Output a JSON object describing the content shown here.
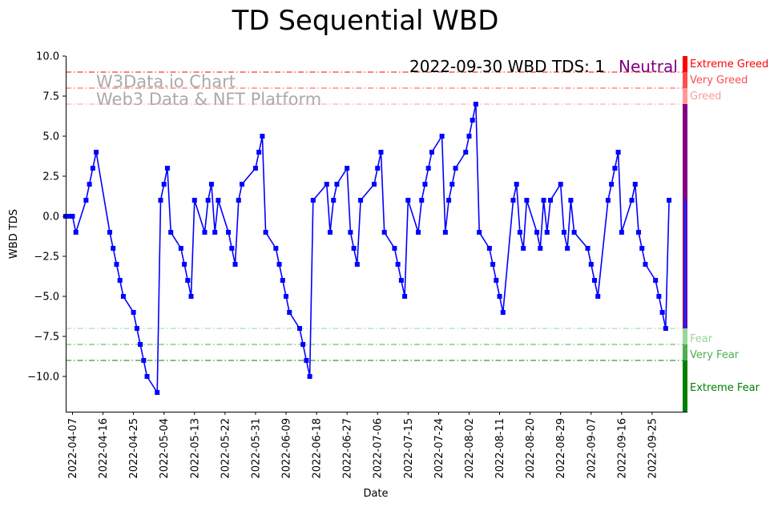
{
  "chart_data": {
    "type": "line",
    "title": "TD Sequential WBD",
    "xlabel": "Date",
    "ylabel": "WBD TDS",
    "ylim": [
      -12.2,
      10
    ],
    "xlim": [
      "2022-04-05",
      "2022-10-04"
    ],
    "y_ticks": [
      10,
      7.5,
      5,
      2.5,
      0,
      -2.5,
      -5,
      -7.5,
      -10
    ],
    "y_tick_labels": [
      "10.0",
      "7.5",
      "5.0",
      "2.5",
      "0.0",
      "−2.5",
      "−5.0",
      "−7.5",
      "−10.0"
    ],
    "x_ticks": [
      "2022-04-07",
      "2022-04-16",
      "2022-04-25",
      "2022-05-04",
      "2022-05-13",
      "2022-05-22",
      "2022-05-31",
      "2022-06-09",
      "2022-06-18",
      "2022-06-27",
      "2022-07-06",
      "2022-07-15",
      "2022-07-24",
      "2022-08-02",
      "2022-08-11",
      "2022-08-20",
      "2022-08-29",
      "2022-09-07",
      "2022-09-16",
      "2022-09-25"
    ],
    "grid": false,
    "annotation": {
      "text": "2022-09-30 WBD TDS: 1",
      "status": "Neutral",
      "status_color": "#800080"
    },
    "watermark": [
      "W3Data.io Chart",
      "Web3 Data & NFT Platform"
    ],
    "levels": [
      {
        "label": "Extreme Greed",
        "value": 9,
        "color": "#ff0000"
      },
      {
        "label": "Very Greed",
        "value": 8,
        "color": "#ff4d4d"
      },
      {
        "label": "Greed",
        "value": 7,
        "color": "#ff9999"
      },
      {
        "label": "Fear",
        "value": -7,
        "color": "#99d699"
      },
      {
        "label": "Very Fear",
        "value": -8,
        "color": "#4caf50"
      },
      {
        "label": "Extreme Fear",
        "value": -9,
        "color": "#008000"
      }
    ],
    "sidebar": [
      {
        "from": 9,
        "to": 10,
        "color": "#ff0000"
      },
      {
        "from": 8,
        "to": 9,
        "color": "#ff4d4d"
      },
      {
        "from": 7,
        "to": 8,
        "color": "#ff9999"
      },
      {
        "from": -7,
        "to": 7,
        "color": "#800080"
      },
      {
        "from": -8,
        "to": -7,
        "color": "#99d699"
      },
      {
        "from": -9,
        "to": -8,
        "color": "#4caf50"
      },
      {
        "from": -12.2,
        "to": -9,
        "color": "#008000"
      }
    ],
    "sidebar_marker": 1,
    "series": [
      {
        "color": "#0000ff",
        "x": [
          "2022-04-05",
          "2022-04-06",
          "2022-04-07",
          "2022-04-08",
          "2022-04-11",
          "2022-04-12",
          "2022-04-13",
          "2022-04-14",
          "2022-04-18",
          "2022-04-19",
          "2022-04-20",
          "2022-04-21",
          "2022-04-22",
          "2022-04-25",
          "2022-04-26",
          "2022-04-27",
          "2022-04-28",
          "2022-04-29",
          "2022-05-02",
          "2022-05-03",
          "2022-05-04",
          "2022-05-05",
          "2022-05-06",
          "2022-05-09",
          "2022-05-10",
          "2022-05-11",
          "2022-05-12",
          "2022-05-13",
          "2022-05-16",
          "2022-05-17",
          "2022-05-18",
          "2022-05-19",
          "2022-05-20",
          "2022-05-23",
          "2022-05-24",
          "2022-05-25",
          "2022-05-26",
          "2022-05-27",
          "2022-05-31",
          "2022-06-01",
          "2022-06-02",
          "2022-06-03",
          "2022-06-06",
          "2022-06-07",
          "2022-06-08",
          "2022-06-09",
          "2022-06-10",
          "2022-06-13",
          "2022-06-14",
          "2022-06-15",
          "2022-06-16",
          "2022-06-17",
          "2022-06-21",
          "2022-06-22",
          "2022-06-23",
          "2022-06-24",
          "2022-06-27",
          "2022-06-28",
          "2022-06-29",
          "2022-06-30",
          "2022-07-01",
          "2022-07-05",
          "2022-07-06",
          "2022-07-07",
          "2022-07-08",
          "2022-07-11",
          "2022-07-12",
          "2022-07-13",
          "2022-07-14",
          "2022-07-15",
          "2022-07-18",
          "2022-07-19",
          "2022-07-20",
          "2022-07-21",
          "2022-07-22",
          "2022-07-25",
          "2022-07-26",
          "2022-07-27",
          "2022-07-28",
          "2022-07-29",
          "2022-08-01",
          "2022-08-02",
          "2022-08-03",
          "2022-08-04",
          "2022-08-05",
          "2022-08-08",
          "2022-08-09",
          "2022-08-10",
          "2022-08-11",
          "2022-08-12",
          "2022-08-15",
          "2022-08-16",
          "2022-08-17",
          "2022-08-18",
          "2022-08-19",
          "2022-08-22",
          "2022-08-23",
          "2022-08-24",
          "2022-08-25",
          "2022-08-26",
          "2022-08-29",
          "2022-08-30",
          "2022-08-31",
          "2022-09-01",
          "2022-09-02",
          "2022-09-06",
          "2022-09-07",
          "2022-09-08",
          "2022-09-09",
          "2022-09-12",
          "2022-09-13",
          "2022-09-14",
          "2022-09-15",
          "2022-09-16",
          "2022-09-19",
          "2022-09-20",
          "2022-09-21",
          "2022-09-22",
          "2022-09-23",
          "2022-09-26",
          "2022-09-27",
          "2022-09-28",
          "2022-09-29",
          "2022-09-30"
        ],
        "y": [
          0,
          0,
          0,
          -1,
          1,
          2,
          3,
          4,
          -1,
          -2,
          -3,
          -4,
          -5,
          -6,
          -7,
          -8,
          -9,
          -10,
          -11,
          1,
          2,
          3,
          -1,
          -2,
          -3,
          -4,
          -5,
          1,
          -1,
          1,
          2,
          -1,
          1,
          -1,
          -2,
          -3,
          1,
          2,
          3,
          4,
          5,
          -1,
          -2,
          -3,
          -4,
          -5,
          -6,
          -7,
          -8,
          -9,
          -10,
          1,
          2,
          -1,
          1,
          2,
          3,
          -1,
          -2,
          -3,
          1,
          2,
          3,
          4,
          -1,
          -2,
          -3,
          -4,
          -5,
          1,
          -1,
          1,
          2,
          3,
          4,
          5,
          -1,
          1,
          2,
          3,
          4,
          5,
          6,
          7,
          -1,
          -2,
          -3,
          -4,
          -5,
          -6,
          1,
          2,
          -1,
          -2,
          1,
          -1,
          -2,
          1,
          -1,
          1,
          2,
          -1,
          -2,
          1,
          -1,
          -2,
          -3,
          -4,
          -5,
          1,
          2,
          3,
          4,
          -1,
          1,
          2,
          -1,
          -2,
          -3,
          -4,
          -5,
          -6,
          -7,
          1
        ]
      }
    ]
  }
}
